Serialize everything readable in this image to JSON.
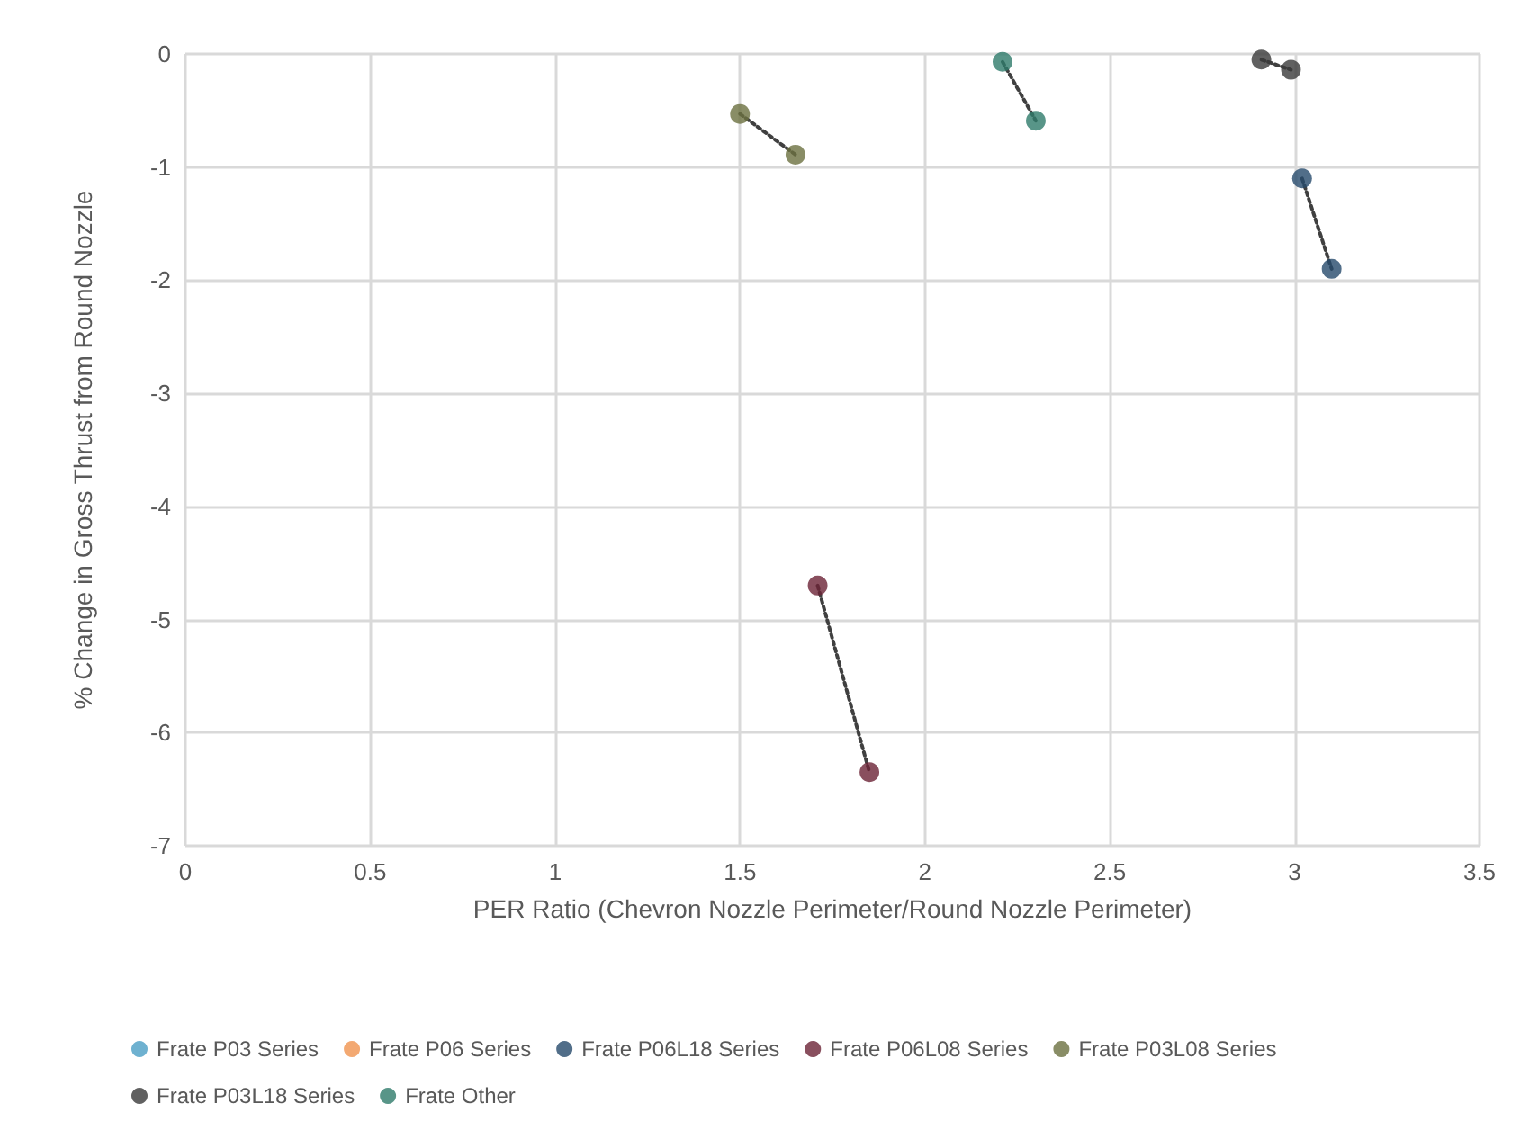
{
  "chart_data": {
    "type": "scatter",
    "xlabel": "PER Ratio (Chevron Nozzle Perimeter/Round Nozzle Perimeter)",
    "ylabel": "% Change in Gross Thrust from Round Nozzle",
    "xlim": [
      0,
      3.5
    ],
    "xticks": [
      0,
      0.5,
      1,
      1.5,
      2,
      2.5,
      3,
      3.5
    ],
    "ylim": [
      -7,
      0
    ],
    "yticks": [
      -7,
      -6,
      -5,
      -4,
      -3,
      -2,
      -1,
      0
    ],
    "grid": true,
    "legend": "bottom",
    "marker": "circle",
    "series": [
      {
        "name": "Frate P03 Series",
        "color": "#4a9ec4"
      },
      {
        "name": "Frate P06 Series",
        "color": "#f0944f"
      },
      {
        "name": "Frate P06L18 Series",
        "color": "#264a6b",
        "x": [
          3.02,
          3.1
        ],
        "values": [
          -1.1,
          -1.9
        ]
      },
      {
        "name": "Frate P06L08 Series",
        "color": "#6b2336",
        "x": [
          1.71,
          1.85
        ],
        "values": [
          -4.7,
          -6.35
        ]
      },
      {
        "name": "Frate P03L08 Series",
        "color": "#6b7040",
        "x": [
          1.5,
          1.65
        ],
        "values": [
          -0.53,
          -0.89
        ]
      },
      {
        "name": "Frate P03L18 Series",
        "color": "#3a3a3a",
        "x": [
          2.91,
          2.99
        ],
        "values": [
          -0.05,
          -0.14
        ]
      },
      {
        "name": "Frate Other",
        "color": "#2e7a6a",
        "x": [
          2.21,
          2.3
        ],
        "values": [
          -0.07,
          -0.59
        ]
      },
      {
        "type": "line",
        "color": "#404040",
        "line_style": "dotted",
        "marker": "none",
        "x": [
          3.02,
          3.1
        ],
        "values": [
          -1.1,
          -1.9
        ]
      },
      {
        "type": "line",
        "color": "#404040",
        "line_style": "dotted",
        "marker": "none",
        "x": [
          1.71,
          1.85
        ],
        "values": [
          -4.7,
          -6.35
        ]
      },
      {
        "type": "line",
        "color": "#404040",
        "line_style": "dotted",
        "marker": "none",
        "x": [
          1.5,
          1.65
        ],
        "values": [
          -0.53,
          -0.89
        ]
      },
      {
        "type": "line",
        "color": "#404040",
        "line_style": "dotted",
        "marker": "none",
        "x": [
          2.91,
          2.99
        ],
        "values": [
          -0.05,
          -0.14
        ]
      },
      {
        "type": "line",
        "color": "#404040",
        "line_style": "dotted",
        "marker": "none",
        "x": [
          2.21,
          2.3
        ],
        "values": [
          -0.07,
          -0.59
        ]
      }
    ]
  }
}
